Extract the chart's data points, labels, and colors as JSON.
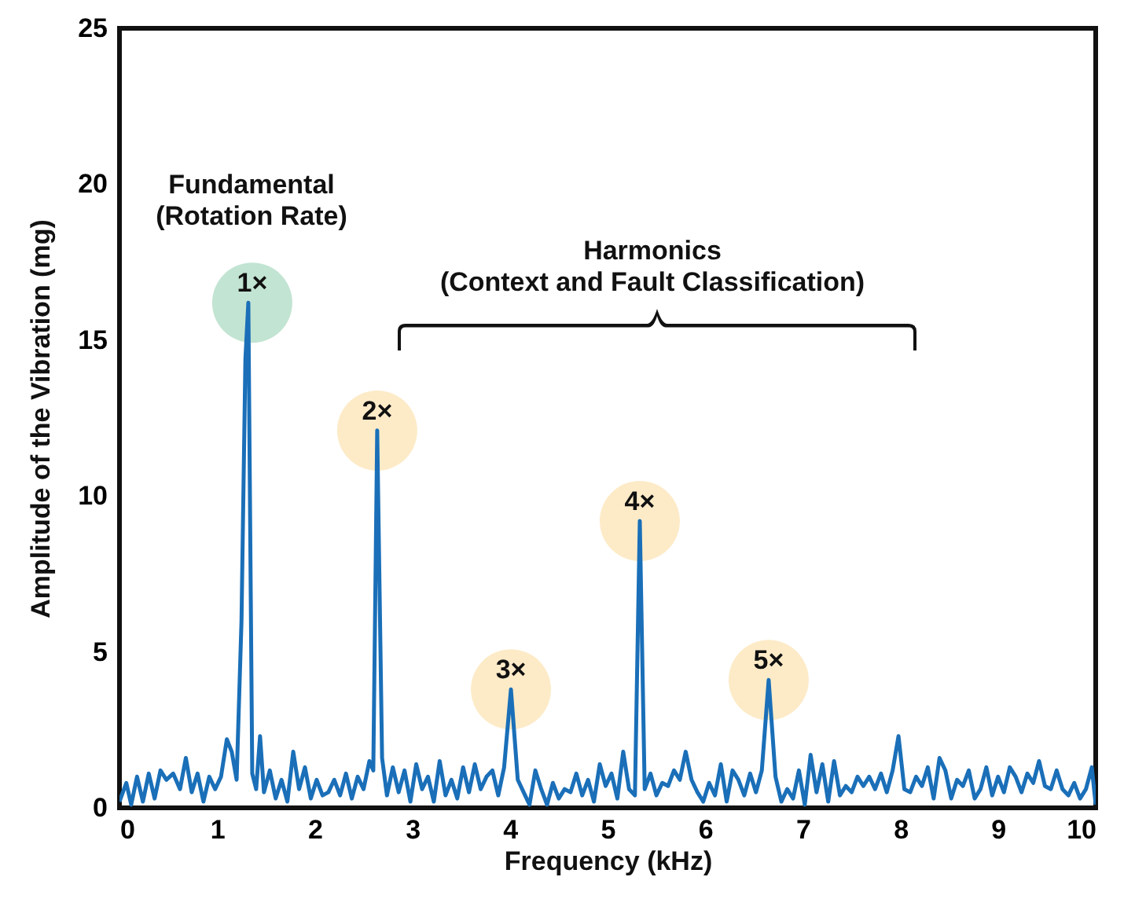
{
  "chart_data": {
    "type": "line",
    "xlabel": "Frequency (kHz)",
    "ylabel": "Amplitude of the Vibration (mg)",
    "x": [
      0,
      0.07,
      0.12,
      0.18,
      0.24,
      0.3,
      0.36,
      0.42,
      0.48,
      0.55,
      0.62,
      0.68,
      0.74,
      0.8,
      0.86,
      0.92,
      0.98,
      1.04,
      1.1,
      1.15,
      1.2,
      1.25,
      1.29,
      1.32,
      1.36,
      1.4,
      1.44,
      1.48,
      1.54,
      1.6,
      1.66,
      1.72,
      1.78,
      1.84,
      1.9,
      1.96,
      2.02,
      2.08,
      2.14,
      2.2,
      2.26,
      2.32,
      2.38,
      2.44,
      2.5,
      2.56,
      2.6,
      2.64,
      2.69,
      2.74,
      2.8,
      2.86,
      2.92,
      2.98,
      3.04,
      3.1,
      3.16,
      3.22,
      3.28,
      3.34,
      3.4,
      3.46,
      3.52,
      3.58,
      3.64,
      3.7,
      3.76,
      3.82,
      3.88,
      3.94,
      4.01,
      4.08,
      4.14,
      4.2,
      4.26,
      4.32,
      4.38,
      4.44,
      4.5,
      4.56,
      4.62,
      4.68,
      4.74,
      4.8,
      4.86,
      4.92,
      4.98,
      5.04,
      5.1,
      5.16,
      5.22,
      5.28,
      5.33,
      5.38,
      5.44,
      5.5,
      5.56,
      5.62,
      5.68,
      5.74,
      5.8,
      5.86,
      5.92,
      5.98,
      6.04,
      6.1,
      6.16,
      6.22,
      6.28,
      6.34,
      6.4,
      6.46,
      6.52,
      6.58,
      6.65,
      6.72,
      6.78,
      6.84,
      6.9,
      6.96,
      7.02,
      7.08,
      7.14,
      7.2,
      7.26,
      7.32,
      7.38,
      7.44,
      7.5,
      7.56,
      7.62,
      7.68,
      7.74,
      7.8,
      7.86,
      7.92,
      7.98,
      8.04,
      8.1,
      8.16,
      8.22,
      8.28,
      8.34,
      8.4,
      8.46,
      8.52,
      8.58,
      8.64,
      8.7,
      8.76,
      8.82,
      8.88,
      8.94,
      9.0,
      9.06,
      9.12,
      9.18,
      9.24,
      9.3,
      9.36,
      9.42,
      9.48,
      9.54,
      9.6,
      9.66,
      9.72,
      9.78,
      9.84,
      9.9,
      9.96,
      10
    ],
    "series": [
      {
        "color": "#1a6fb8",
        "values": [
          0.2,
          0.8,
          0.1,
          1.0,
          0.2,
          1.1,
          0.3,
          1.2,
          0.9,
          1.1,
          0.6,
          1.6,
          0.5,
          1.1,
          0.2,
          1.0,
          0.6,
          1.0,
          2.2,
          1.8,
          0.9,
          6.0,
          14.4,
          16.2,
          1.1,
          0.6,
          2.3,
          0.5,
          1.2,
          0.3,
          0.9,
          0.2,
          1.8,
          0.6,
          1.3,
          0.3,
          0.9,
          0.4,
          0.5,
          0.9,
          0.4,
          1.1,
          0.3,
          1.0,
          0.6,
          1.5,
          1.2,
          12.1,
          1.6,
          0.4,
          1.3,
          0.5,
          1.2,
          0.2,
          1.4,
          0.6,
          1.0,
          0.2,
          1.5,
          0.4,
          0.9,
          0.3,
          1.3,
          0.5,
          1.4,
          0.6,
          1.0,
          1.2,
          0.4,
          1.3,
          3.8,
          0.9,
          0.5,
          0.1,
          1.2,
          0.6,
          0.1,
          0.8,
          0.3,
          0.6,
          0.5,
          1.1,
          0.4,
          0.9,
          0.2,
          1.4,
          0.7,
          1.1,
          0.3,
          1.8,
          0.6,
          0.4,
          9.2,
          0.6,
          1.1,
          0.4,
          0.8,
          0.7,
          1.2,
          0.9,
          1.8,
          0.9,
          0.5,
          0.2,
          0.8,
          0.4,
          1.4,
          0.2,
          1.2,
          0.9,
          0.4,
          1.1,
          0.5,
          1.2,
          4.1,
          1.0,
          0.2,
          0.6,
          0.3,
          1.2,
          0.1,
          1.7,
          0.5,
          1.4,
          0.2,
          1.5,
          0.4,
          0.7,
          0.5,
          1.0,
          0.7,
          1.0,
          0.6,
          1.1,
          0.5,
          1.2,
          2.3,
          0.6,
          0.5,
          1.0,
          0.7,
          1.3,
          0.3,
          1.6,
          1.2,
          0.3,
          0.9,
          0.7,
          1.2,
          0.3,
          0.6,
          1.3,
          0.4,
          1.0,
          0.5,
          1.3,
          1.0,
          0.5,
          1.1,
          0.8,
          1.5,
          0.7,
          0.6,
          1.2,
          0.6,
          0.4,
          0.8,
          0.3,
          0.6,
          1.3,
          0.1
        ]
      }
    ],
    "xlim": [
      0,
      10
    ],
    "xticks": [
      0,
      1,
      2,
      3,
      4,
      5,
      6,
      7,
      8,
      9,
      10
    ],
    "ylim": [
      0,
      25
    ],
    "yticks": [
      0,
      5,
      10,
      15,
      20,
      25
    ],
    "annotations": [
      {
        "text": "1×",
        "x": 1.36,
        "y": 16.2
      },
      {
        "text": "2×",
        "x": 2.64,
        "y": 12.1
      },
      {
        "text": "3×",
        "x": 4.01,
        "y": 3.8
      },
      {
        "text": "4×",
        "x": 5.33,
        "y": 9.2
      },
      {
        "text": "5×",
        "x": 6.65,
        "y": 4.1
      },
      "Fundamental\n(Rotation Rate)",
      "Harmonics\n(Context and Fault Classification)"
    ]
  }
}
